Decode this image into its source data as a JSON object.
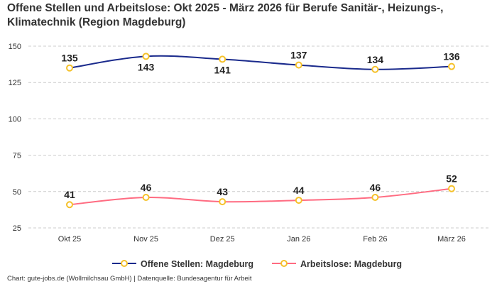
{
  "chart_data": {
    "type": "line",
    "title": "Offene Stellen und Arbeitslose: Okt 2025 - März 2026 für Berufe Sanitär-, Heizungs-, Klimatechnik (Region Magdeburg)",
    "categories": [
      "Okt 25",
      "Nov 25",
      "Dez 25",
      "Jan 26",
      "Feb 26",
      "März 26"
    ],
    "series": [
      {
        "name": "Offene Stellen: Magdeburg",
        "values": [
          135,
          143,
          141,
          137,
          134,
          136
        ],
        "color": "#1a2a8c",
        "label_positions": [
          "above",
          "below",
          "below",
          "above",
          "above",
          "above"
        ]
      },
      {
        "name": "Arbeitslose: Magdeburg",
        "values": [
          41,
          46,
          43,
          44,
          46,
          52
        ],
        "color": "#ff6b81",
        "label_positions": [
          "above",
          "above",
          "above",
          "above",
          "above",
          "above"
        ]
      }
    ],
    "marker_color": "#f5c12a",
    "yticks": [
      25,
      50,
      75,
      100,
      125,
      150
    ],
    "ylim": [
      25,
      150
    ],
    "grid": true,
    "legend": "bottom",
    "xlabel": "",
    "ylabel": ""
  },
  "footer": "Chart: gute-jobs.de (Wollmilchsau GmbH) | Datenquelle: Bundesagentur für Arbeit"
}
